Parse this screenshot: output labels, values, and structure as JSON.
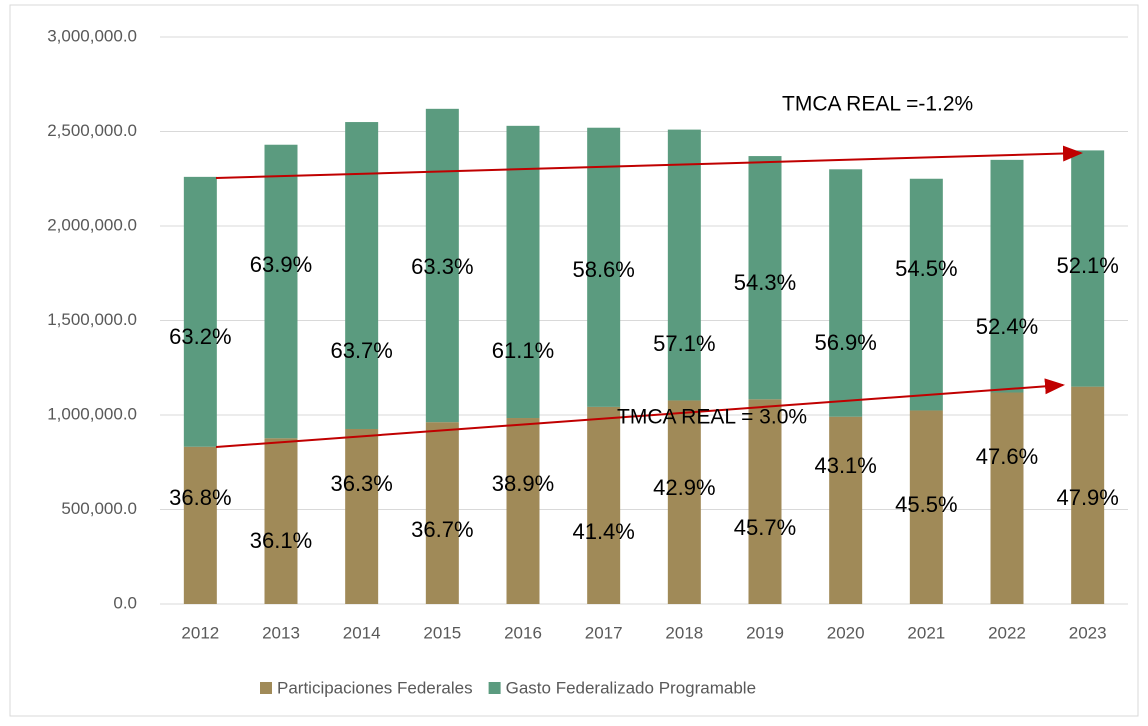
{
  "chart_data": {
    "type": "stacked_bar",
    "categories": [
      "2012",
      "2013",
      "2014",
      "2015",
      "2016",
      "2017",
      "2018",
      "2019",
      "2020",
      "2021",
      "2022",
      "2023"
    ],
    "series": [
      {
        "name": "Participaciones Federales",
        "color": "#a08a58",
        "values": [
          832000,
          877000,
          926000,
          962000,
          984000,
          1043000,
          1077000,
          1083000,
          991000,
          1024000,
          1119000,
          1150000
        ],
        "percent_labels": [
          "36.8%",
          "36.1%",
          "36.3%",
          "36.7%",
          "38.9%",
          "41.4%",
          "42.9%",
          "45.7%",
          "43.1%",
          "45.5%",
          "47.6%",
          "47.9%"
        ]
      },
      {
        "name": "Gasto Federalizado Programable",
        "color": "#5b9b7f",
        "values": [
          1428000,
          1553000,
          1624000,
          1658000,
          1546000,
          1477000,
          1433000,
          1287000,
          1309000,
          1226000,
          1231000,
          1250000
        ],
        "percent_labels": [
          "63.2%",
          "63.9%",
          "63.7%",
          "63.3%",
          "61.1%",
          "58.6%",
          "57.1%",
          "54.3%",
          "56.9%",
          "54.5%",
          "52.4%",
          "52.1%"
        ]
      }
    ],
    "ylim": [
      0,
      3000000
    ],
    "yticks": [
      {
        "value": 0,
        "label": "0.0"
      },
      {
        "value": 500000,
        "label": "500,000.0"
      },
      {
        "value": 1000000,
        "label": "1,000,000.0"
      },
      {
        "value": 1500000,
        "label": "1,500,000.0"
      },
      {
        "value": 2000000,
        "label": "2,000,000.0"
      },
      {
        "value": 2500000,
        "label": "2,500,000.0"
      },
      {
        "value": 3000000,
        "label": "3,000,000.0"
      }
    ],
    "grid": true,
    "legend": "bottom",
    "annotations": [
      "TMCA REAL =-1.2%",
      "TMCA REAL = 3.0%"
    ]
  }
}
